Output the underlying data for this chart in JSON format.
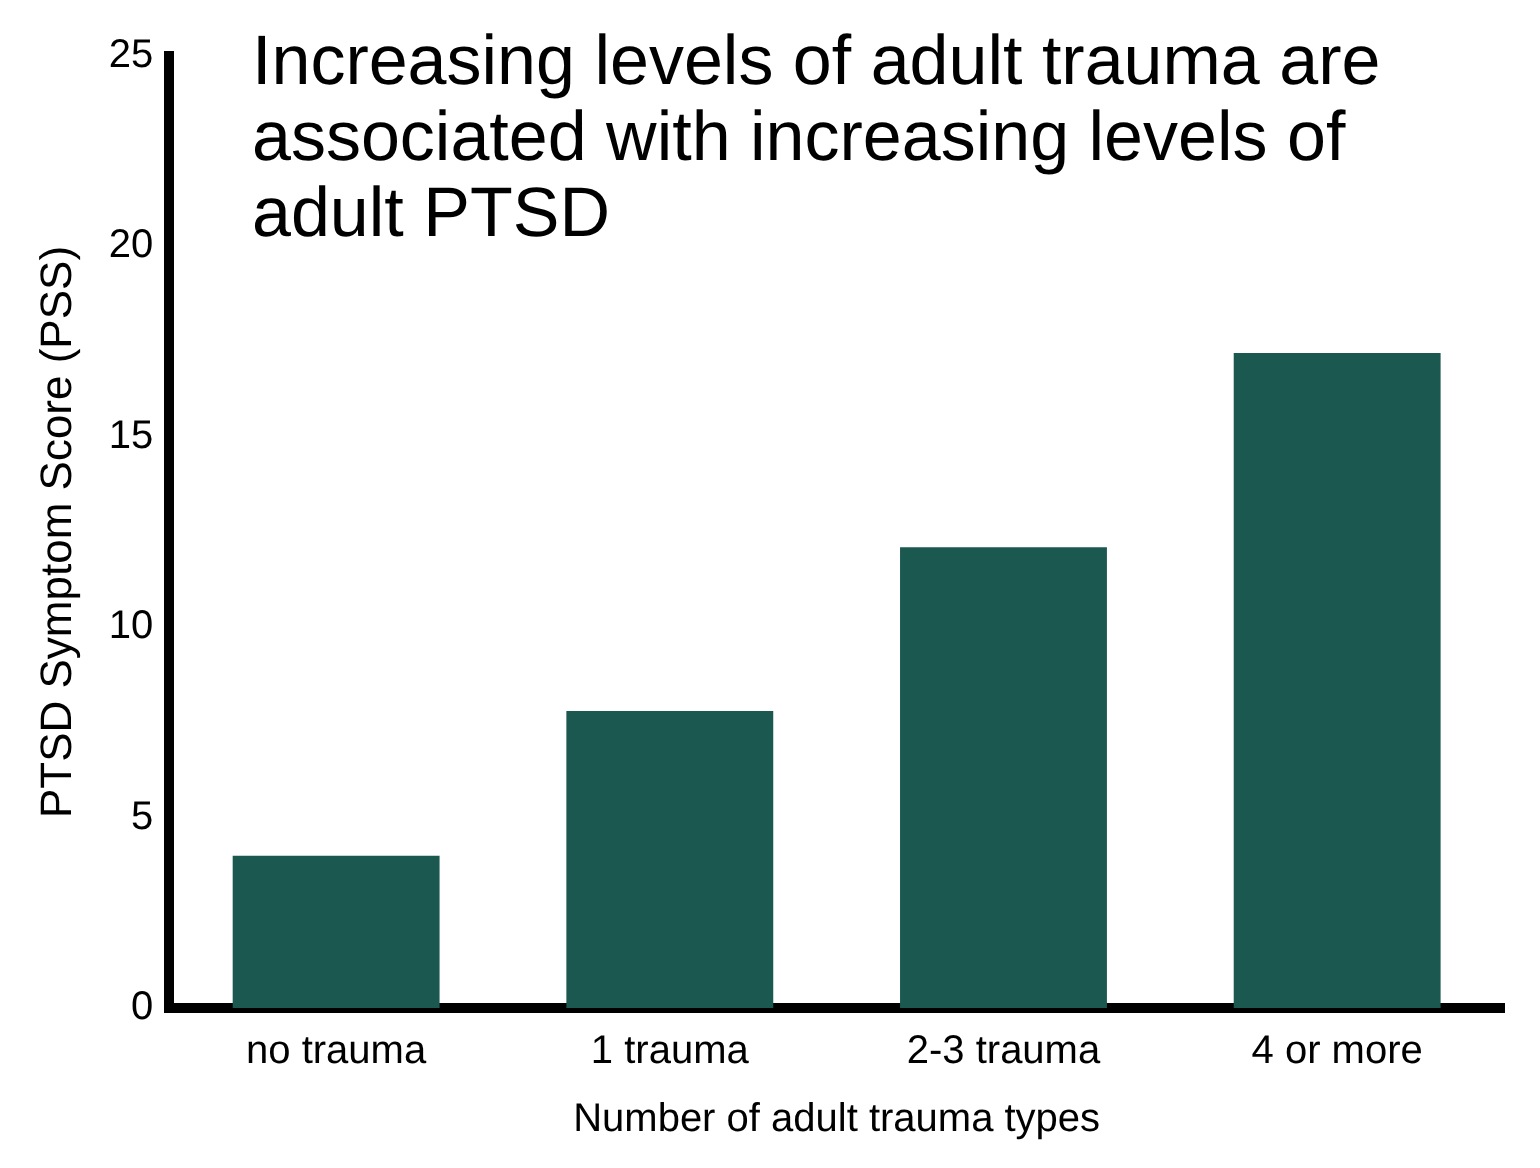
{
  "chart_data": {
    "type": "bar",
    "title": "Increasing levels of adult trauma are associated with increasing levels of adult PTSD",
    "xlabel": "Number of adult trauma types",
    "ylabel": "PTSD Symptom Score (PSS)",
    "categories": [
      "no trauma",
      "1 trauma",
      "2-3 trauma",
      "4 or more"
    ],
    "values": [
      4,
      7.8,
      12.1,
      17.2
    ],
    "color": "#1a5850",
    "ylim": [
      0,
      25
    ],
    "yticks": [
      0,
      5,
      10,
      15,
      20,
      25
    ],
    "grid": false,
    "legend": false
  }
}
